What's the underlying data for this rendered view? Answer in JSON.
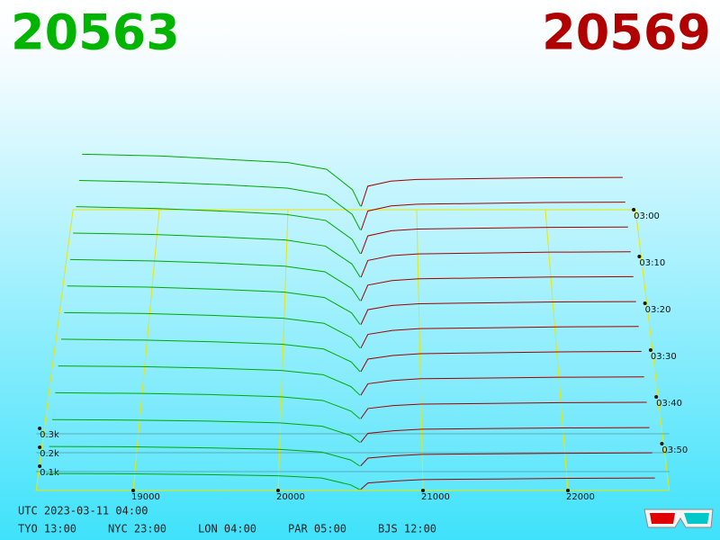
{
  "bid_price": 20563,
  "ask_price": 20569,
  "chart_data": {
    "type": "depth3d",
    "xlim": [
      18330,
      22700
    ],
    "xticks": [
      19000,
      20000,
      21000,
      22000
    ],
    "tlim": [
      0,
      60
    ],
    "tticks": [
      {
        "value": 0,
        "label": "03:00"
      },
      {
        "value": 10,
        "label": "03:10"
      },
      {
        "value": 20,
        "label": "03:20"
      },
      {
        "value": 30,
        "label": "03:30"
      },
      {
        "value": 40,
        "label": "03:40"
      },
      {
        "value": 50,
        "label": "03:50"
      }
    ],
    "yticks": [
      {
        "value": 100,
        "label": "0.1k"
      },
      {
        "value": 200,
        "label": "0.2k"
      },
      {
        "value": 300,
        "label": "0.3k"
      }
    ],
    "bid_color": "#00a800",
    "ask_color": "#a00000",
    "bid_prices": [
      18400,
      19000,
      19500,
      20000,
      20300,
      20500,
      20563
    ],
    "ask_prices": [
      20569,
      20620,
      20800,
      21000,
      21500,
      22000,
      22600
    ],
    "snapshots": [
      {
        "t": 0,
        "bids": [
          330,
          320,
          300,
          280,
          240,
          120,
          20
        ],
        "asks": [
          20,
          140,
          170,
          180,
          185,
          190,
          192
        ]
      },
      {
        "t": 5,
        "bids": [
          310,
          300,
          285,
          265,
          225,
          110,
          18
        ],
        "asks": [
          18,
          130,
          160,
          170,
          175,
          180,
          182
        ]
      },
      {
        "t": 10,
        "bids": [
          290,
          280,
          265,
          245,
          210,
          100,
          16
        ],
        "asks": [
          16,
          120,
          150,
          160,
          165,
          170,
          172
        ]
      },
      {
        "t": 15,
        "bids": [
          270,
          262,
          248,
          230,
          195,
          92,
          15
        ],
        "asks": [
          15,
          112,
          140,
          150,
          155,
          160,
          162
        ]
      },
      {
        "t": 20,
        "bids": [
          250,
          242,
          230,
          212,
          180,
          85,
          14
        ],
        "asks": [
          14,
          104,
          130,
          140,
          145,
          150,
          152
        ]
      },
      {
        "t": 25,
        "bids": [
          230,
          224,
          212,
          196,
          165,
          78,
          12
        ],
        "asks": [
          12,
          96,
          120,
          130,
          135,
          140,
          142
        ]
      },
      {
        "t": 30,
        "bids": [
          210,
          205,
          194,
          178,
          150,
          70,
          11
        ],
        "asks": [
          11,
          88,
          110,
          120,
          125,
          130,
          132
        ]
      },
      {
        "t": 35,
        "bids": [
          190,
          185,
          176,
          162,
          136,
          64,
          10
        ],
        "asks": [
          10,
          80,
          100,
          110,
          115,
          120,
          122
        ]
      },
      {
        "t": 40,
        "bids": [
          170,
          166,
          158,
          145,
          122,
          56,
          9
        ],
        "asks": [
          9,
          72,
          90,
          100,
          104,
          108,
          110
        ]
      },
      {
        "t": 45,
        "bids": [
          150,
          146,
          140,
          128,
          108,
          50,
          8
        ],
        "asks": [
          8,
          64,
          80,
          88,
          92,
          96,
          98
        ]
      },
      {
        "t": 50,
        "bids": [
          130,
          127,
          122,
          112,
          94,
          44,
          7
        ],
        "asks": [
          7,
          56,
          70,
          78,
          82,
          85,
          87
        ]
      },
      {
        "t": 55,
        "bids": [
          110,
          108,
          103,
          95,
          80,
          38,
          6
        ],
        "asks": [
          6,
          48,
          60,
          68,
          71,
          74,
          76
        ]
      },
      {
        "t": 60,
        "bids": [
          90,
          88,
          84,
          78,
          66,
          30,
          5
        ],
        "asks": [
          5,
          40,
          50,
          58,
          61,
          64,
          66
        ]
      }
    ]
  },
  "clocks": {
    "utc": "UTC 2023-03-11 04:00",
    "cities": [
      "TYO 13:00",
      "NYC 23:00",
      "LON 04:00",
      "PAR 05:00",
      "BJS 12:00"
    ]
  }
}
